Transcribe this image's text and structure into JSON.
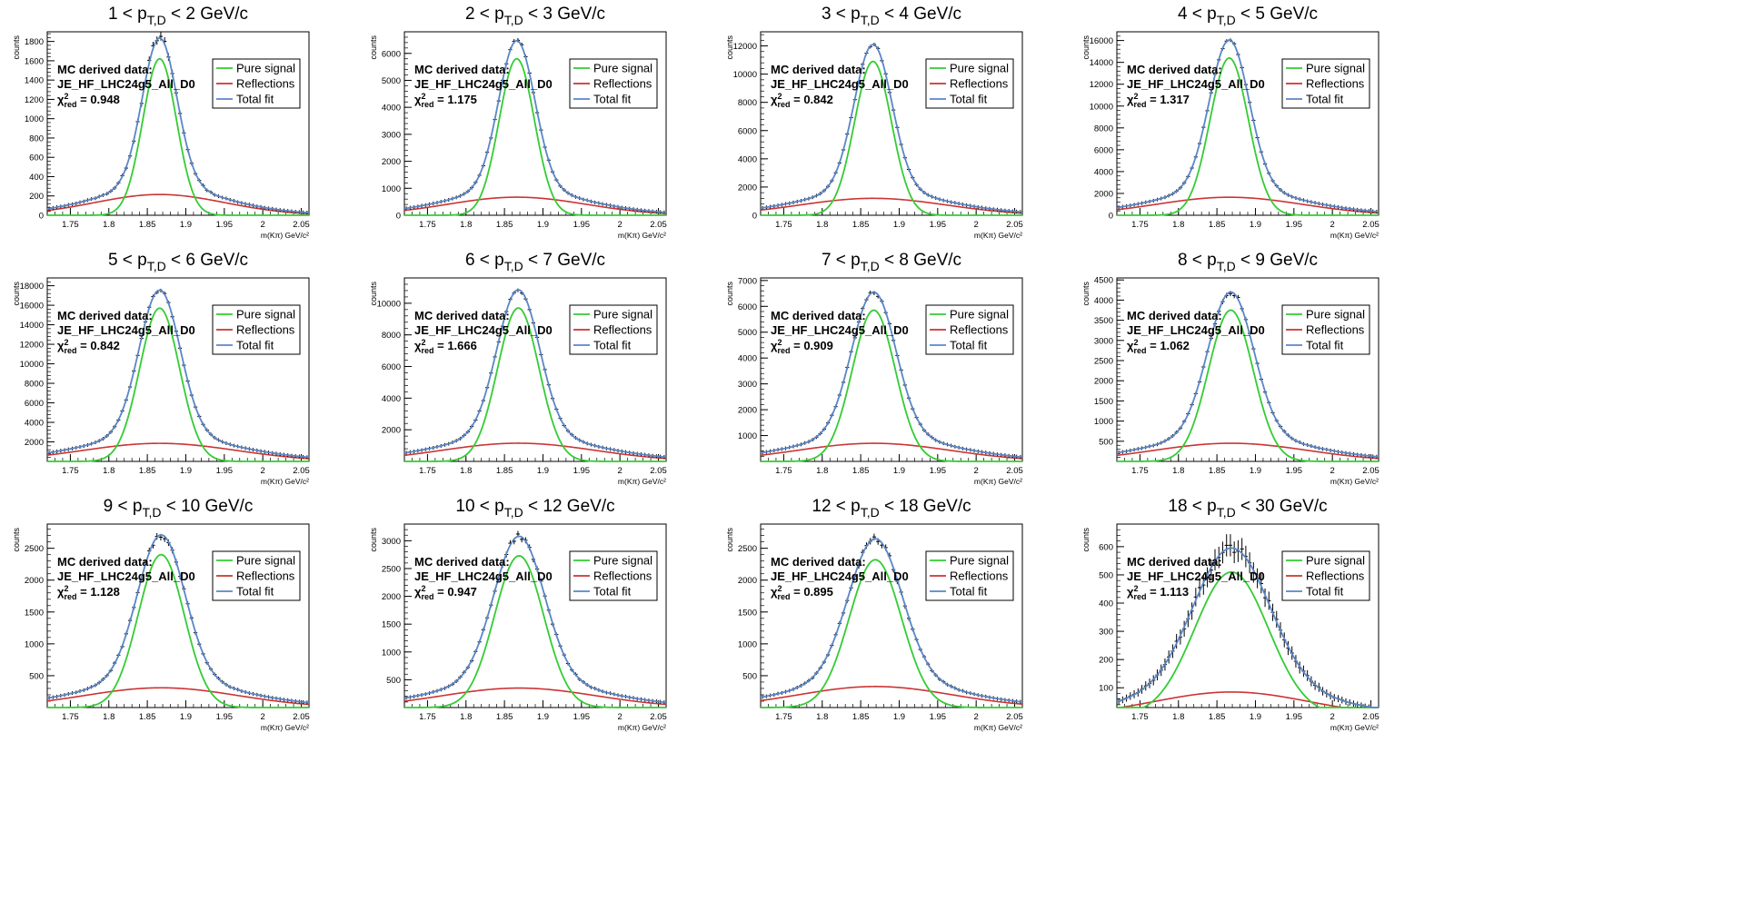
{
  "colors": {
    "signal": "#33cc33",
    "reflections": "#cc3333",
    "total": "#5a86c8",
    "data": "#000000",
    "frame": "#000000"
  },
  "labels": {
    "ylabel": "counts",
    "xlabel": "m(Kπ) GeV/c²",
    "legend": [
      "Pure signal",
      "Reflections",
      "Total fit"
    ],
    "info_line1": "MC derived data:",
    "info_line2": "JE_HF_LHC24g5_All_D0",
    "chi2_prefix": "χ",
    "chi2_sup": "2",
    "chi2_sub": "red"
  },
  "chart_data": [
    {
      "type": "line",
      "title": "1 < p_{T,D} < 2 GeV/c",
      "title_lo": "1",
      "title_hi": "2",
      "chi2": "0.948",
      "xlim": [
        1.72,
        2.06
      ],
      "ylim": [
        0,
        1900
      ],
      "yticks": [
        0,
        200,
        400,
        600,
        800,
        1000,
        1200,
        1400,
        1600,
        1800
      ],
      "xticks": [
        1.75,
        1.8,
        1.85,
        1.9,
        1.95,
        2,
        2.05
      ],
      "fit": {
        "signal_peak": 1620,
        "signal_sigma": 0.022,
        "refl_peak": 215,
        "refl_sigma": 0.085,
        "mean": 1.866
      },
      "noise": 0.04
    },
    {
      "type": "line",
      "title": "2 < p_{T,D} < 3 GeV/c",
      "title_lo": "2",
      "title_hi": "3",
      "chi2": "1.175",
      "xlim": [
        1.72,
        2.06
      ],
      "ylim": [
        0,
        6800
      ],
      "yticks": [
        0,
        1000,
        2000,
        3000,
        4000,
        5000,
        6000
      ],
      "xticks": [
        1.75,
        1.8,
        1.85,
        1.9,
        1.95,
        2,
        2.05
      ],
      "fit": {
        "signal_peak": 5800,
        "signal_sigma": 0.023,
        "refl_peak": 670,
        "refl_sigma": 0.09,
        "mean": 1.866
      },
      "noise": 0.02
    },
    {
      "type": "line",
      "title": "3 < p_{T,D} < 4 GeV/c",
      "title_lo": "3",
      "title_hi": "4",
      "chi2": "0.842",
      "xlim": [
        1.72,
        2.06
      ],
      "ylim": [
        0,
        13000
      ],
      "yticks": [
        0,
        2000,
        4000,
        6000,
        8000,
        10000,
        12000
      ],
      "xticks": [
        1.75,
        1.8,
        1.85,
        1.9,
        1.95,
        2,
        2.05
      ],
      "fit": {
        "signal_peak": 10900,
        "signal_sigma": 0.024,
        "refl_peak": 1200,
        "refl_sigma": 0.095,
        "mean": 1.866
      },
      "noise": 0.015
    },
    {
      "type": "line",
      "title": "4 < p_{T,D} < 5 GeV/c",
      "title_lo": "4",
      "title_hi": "5",
      "chi2": "1.317",
      "xlim": [
        1.72,
        2.06
      ],
      "ylim": [
        0,
        16800
      ],
      "yticks": [
        0,
        2000,
        4000,
        6000,
        8000,
        10000,
        12000,
        14000,
        16000
      ],
      "xticks": [
        1.75,
        1.8,
        1.85,
        1.9,
        1.95,
        2,
        2.05
      ],
      "fit": {
        "signal_peak": 14400,
        "signal_sigma": 0.025,
        "refl_peak": 1650,
        "refl_sigma": 0.095,
        "mean": 1.866
      },
      "noise": 0.012
    },
    {
      "type": "line",
      "title": "5 < p_{T,D} < 6 GeV/c",
      "title_lo": "5",
      "title_hi": "6",
      "chi2": "0.842",
      "xlim": [
        1.72,
        2.06
      ],
      "ylim": [
        0,
        18800
      ],
      "yticks": [
        2000,
        4000,
        6000,
        8000,
        10000,
        12000,
        14000,
        16000,
        18000
      ],
      "xticks": [
        1.75,
        1.8,
        1.85,
        1.9,
        1.95,
        2,
        2.05
      ],
      "fit": {
        "signal_peak": 15700,
        "signal_sigma": 0.026,
        "refl_peak": 1850,
        "refl_sigma": 0.1,
        "mean": 1.866
      },
      "noise": 0.012
    },
    {
      "type": "line",
      "title": "6 < p_{T,D} < 7 GeV/c",
      "title_lo": "6",
      "title_hi": "7",
      "chi2": "1.666",
      "xlim": [
        1.72,
        2.06
      ],
      "ylim": [
        0,
        11600
      ],
      "yticks": [
        2000,
        4000,
        6000,
        8000,
        10000
      ],
      "xticks": [
        1.75,
        1.8,
        1.85,
        1.9,
        1.95,
        2,
        2.05
      ],
      "fit": {
        "signal_peak": 9700,
        "signal_sigma": 0.027,
        "refl_peak": 1150,
        "refl_sigma": 0.1,
        "mean": 1.868
      },
      "noise": 0.015
    },
    {
      "type": "line",
      "title": "7 < p_{T,D} < 8 GeV/c",
      "title_lo": "7",
      "title_hi": "8",
      "chi2": "0.909",
      "xlim": [
        1.72,
        2.06
      ],
      "ylim": [
        0,
        7100
      ],
      "yticks": [
        1000,
        2000,
        3000,
        4000,
        5000,
        6000,
        7000
      ],
      "xticks": [
        1.75,
        1.8,
        1.85,
        1.9,
        1.95,
        2,
        2.05
      ],
      "fit": {
        "signal_peak": 5850,
        "signal_sigma": 0.028,
        "refl_peak": 700,
        "refl_sigma": 0.1,
        "mean": 1.867
      },
      "noise": 0.02
    },
    {
      "type": "line",
      "title": "8 < p_{T,D} < 9 GeV/c",
      "title_lo": "8",
      "title_hi": "9",
      "chi2": "1.062",
      "xlim": [
        1.72,
        2.06
      ],
      "ylim": [
        0,
        4550
      ],
      "yticks": [
        500,
        1000,
        1500,
        2000,
        2500,
        3000,
        3500,
        4000,
        4500
      ],
      "xticks": [
        1.75,
        1.8,
        1.85,
        1.9,
        1.95,
        2,
        2.05
      ],
      "fit": {
        "signal_peak": 3750,
        "signal_sigma": 0.029,
        "refl_peak": 450,
        "refl_sigma": 0.1,
        "mean": 1.868
      },
      "noise": 0.025
    },
    {
      "type": "line",
      "title": "9 < p_{T,D} < 10 GeV/c",
      "title_lo": "9",
      "title_hi": "10",
      "chi2": "1.128",
      "xlim": [
        1.72,
        2.06
      ],
      "ylim": [
        0,
        2880
      ],
      "yticks": [
        500,
        1000,
        1500,
        2000,
        2500
      ],
      "xticks": [
        1.75,
        1.8,
        1.85,
        1.9,
        1.95,
        2,
        2.05
      ],
      "fit": {
        "signal_peak": 2400,
        "signal_sigma": 0.03,
        "refl_peak": 310,
        "refl_sigma": 0.1,
        "mean": 1.868
      },
      "noise": 0.03
    },
    {
      "type": "line",
      "title": "10 < p_{T,D} < 12 GeV/c",
      "title_lo": "10",
      "title_hi": "12",
      "chi2": "0.947",
      "xlim": [
        1.72,
        2.06
      ],
      "ylim": [
        0,
        3300
      ],
      "yticks": [
        500,
        1000,
        1500,
        2000,
        2500,
        3000
      ],
      "xticks": [
        1.75,
        1.8,
        1.85,
        1.9,
        1.95,
        2,
        2.05
      ],
      "fit": {
        "signal_peak": 2730,
        "signal_sigma": 0.032,
        "refl_peak": 350,
        "refl_sigma": 0.1,
        "mean": 1.869
      },
      "noise": 0.03
    },
    {
      "type": "line",
      "title": "12 < p_{T,D} < 18 GeV/c",
      "title_lo": "12",
      "title_hi": "18",
      "chi2": "0.895",
      "xlim": [
        1.72,
        2.06
      ],
      "ylim": [
        0,
        2880
      ],
      "yticks": [
        500,
        1000,
        1500,
        2000,
        2500
      ],
      "xticks": [
        1.75,
        1.8,
        1.85,
        1.9,
        1.95,
        2,
        2.05
      ],
      "fit": {
        "signal_peak": 2320,
        "signal_sigma": 0.034,
        "refl_peak": 330,
        "refl_sigma": 0.1,
        "mean": 1.869
      },
      "noise": 0.03
    },
    {
      "type": "line",
      "title": "18 < p_{T,D} < 30 GeV/c",
      "title_lo": "18",
      "title_hi": "30",
      "chi2": "1.113",
      "xlim": [
        1.72,
        2.06
      ],
      "ylim": [
        30,
        680
      ],
      "yticks": [
        100,
        200,
        300,
        400,
        500,
        600
      ],
      "xticks": [
        1.75,
        1.8,
        1.85,
        1.9,
        1.95,
        2,
        2.05
      ],
      "fit": {
        "signal_peak": 510,
        "signal_sigma": 0.048,
        "refl_peak": 85,
        "refl_sigma": 0.1,
        "mean": 1.869
      },
      "noise": 0.06
    }
  ]
}
